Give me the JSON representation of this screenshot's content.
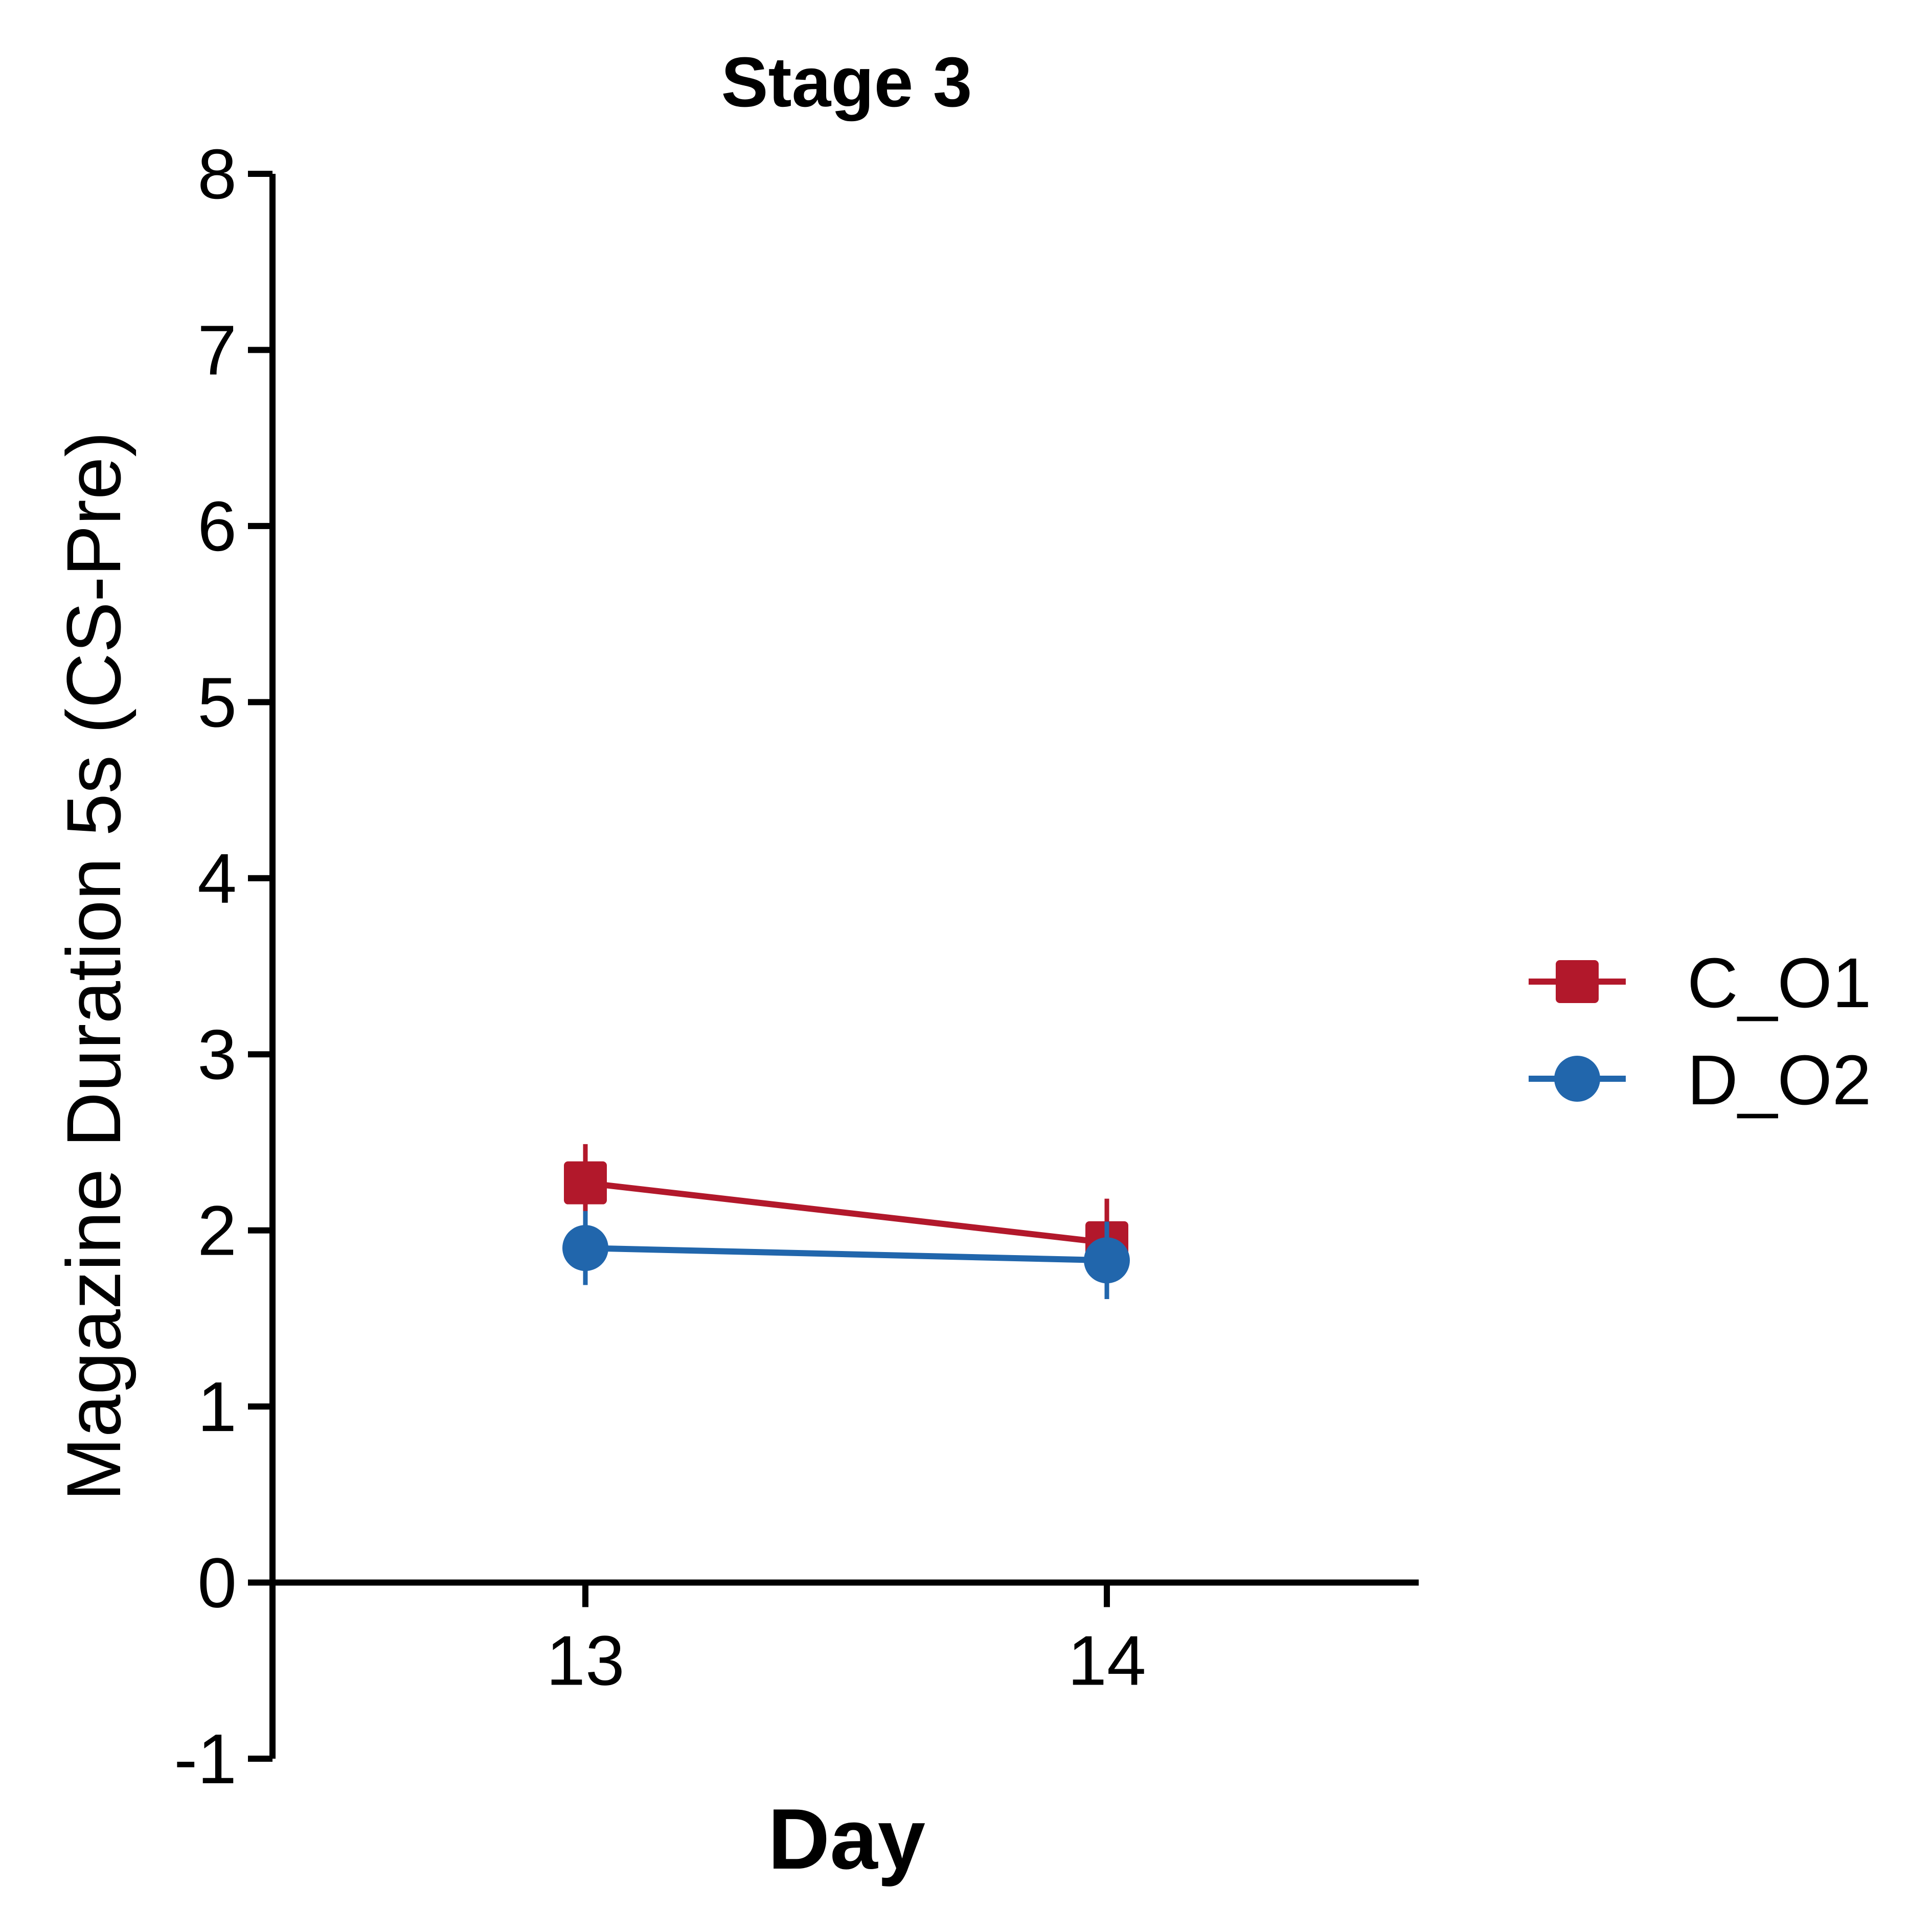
{
  "chart_data": {
    "type": "line",
    "title": "Stage 3",
    "xlabel": "Day",
    "ylabel": "Magazine Duration 5s (CS-Pre)",
    "categories": [
      "13",
      "14"
    ],
    "yticks": [
      "-1",
      "0",
      "1",
      "2",
      "3",
      "4",
      "5",
      "6",
      "7",
      "8"
    ],
    "ylim": [
      -1,
      8
    ],
    "grid": false,
    "legend_position": "right",
    "series": [
      {
        "name": "C_O1",
        "color": "#b2182b",
        "marker": "square",
        "values": [
          2.27,
          1.93
        ],
        "error": [
          0.22,
          0.25
        ]
      },
      {
        "name": "D_O2",
        "color": "#2166ac",
        "marker": "circle",
        "values": [
          1.9,
          1.83
        ],
        "error": [
          0.21,
          0.22
        ]
      }
    ]
  }
}
